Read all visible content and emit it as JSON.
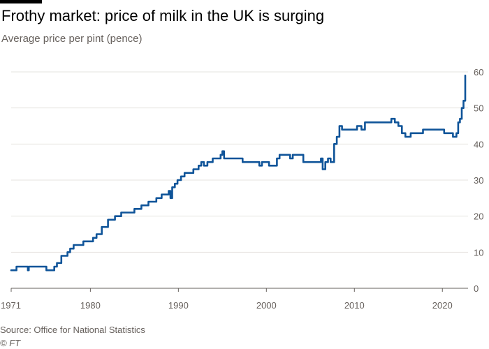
{
  "header": {
    "title": "Frothy market: price of milk in the UK is surging",
    "subtitle": "Average price per pint (pence)"
  },
  "footer": {
    "source": "Source: Office for National Statistics",
    "credit": "© FT"
  },
  "colors": {
    "line": "#0f5499",
    "grid": "#e6e3df",
    "baseline": "#66605c",
    "text": "#66605c",
    "background": "#ffffff"
  },
  "chart_data": {
    "type": "line",
    "title": "Frothy market: price of milk in the UK is surging",
    "subtitle": "Average price per pint (pence)",
    "xlabel": "",
    "ylabel": "Average price per pint (pence)",
    "xlim": [
      1971,
      2022.6
    ],
    "ylim": [
      0,
      60
    ],
    "x_ticks": [
      "1971",
      "1980",
      "1990",
      "2000",
      "2010",
      "2020"
    ],
    "y_ticks": [
      "0",
      "10",
      "20",
      "30",
      "40",
      "50",
      "60"
    ],
    "grid": true,
    "legend": "none",
    "series": [
      {
        "name": "Average price per pint (pence)",
        "x": [
          1971.0,
          1971.6,
          1972.0,
          1972.9,
          1973.0,
          1973.5,
          1974.0,
          1974.9,
          1975.0,
          1975.3,
          1975.6,
          1975.9,
          1976.2,
          1976.7,
          1977.0,
          1977.4,
          1977.7,
          1978.1,
          1978.6,
          1979.2,
          1979.7,
          1980.3,
          1980.7,
          1981.3,
          1982.0,
          1982.8,
          1983.5,
          1984.2,
          1985.0,
          1985.8,
          1986.6,
          1987.5,
          1988.1,
          1988.5,
          1988.9,
          1989.1,
          1989.3,
          1989.6,
          1989.9,
          1990.3,
          1990.7,
          1991.2,
          1991.7,
          1992.3,
          1992.6,
          1992.9,
          1993.3,
          1993.6,
          1993.9,
          1994.3,
          1994.8,
          1995.0,
          1995.2,
          1996.2,
          1997.3,
          1998.5,
          1999.2,
          1999.5,
          2000.3,
          2000.9,
          2001.2,
          2001.5,
          2002.3,
          2002.7,
          2003.0,
          2003.5,
          2004.2,
          2005.0,
          2005.8,
          2006.2,
          2006.4,
          2006.7,
          2007.0,
          2007.3,
          2007.7,
          2008.0,
          2008.3,
          2008.6,
          2008.9,
          2009.5,
          2010.3,
          2010.8,
          2011.2,
          2012.0,
          2013.0,
          2013.6,
          2014.2,
          2014.6,
          2015.0,
          2015.4,
          2015.8,
          2016.4,
          2017.2,
          2017.8,
          2018.4,
          2019.0,
          2019.6,
          2020.2,
          2020.8,
          2021.2,
          2021.4,
          2021.6,
          2021.8,
          2022.0,
          2022.2,
          2022.4,
          2022.6
        ],
        "values": [
          5,
          6,
          6,
          5,
          6,
          6,
          6,
          6,
          5,
          5,
          5,
          6,
          7,
          9,
          9,
          10,
          11,
          12,
          12,
          13,
          13,
          14,
          15,
          17,
          19,
          20,
          21,
          21,
          22,
          23,
          24,
          25,
          26,
          26,
          27,
          25,
          28,
          29,
          30,
          31,
          32,
          32,
          33,
          34,
          35,
          34,
          35,
          35,
          36,
          36,
          37,
          38,
          36,
          36,
          35,
          35,
          34,
          35,
          34,
          34,
          36,
          37,
          37,
          36,
          37,
          37,
          35,
          35,
          35,
          36,
          33,
          35,
          36,
          35,
          40,
          42,
          45,
          44,
          44,
          44,
          45,
          44,
          46,
          46,
          46,
          46,
          47,
          46,
          45,
          43,
          42,
          43,
          43,
          44,
          44,
          44,
          44,
          43,
          43,
          42,
          42,
          43,
          46,
          47,
          50,
          52,
          59
        ]
      }
    ]
  }
}
